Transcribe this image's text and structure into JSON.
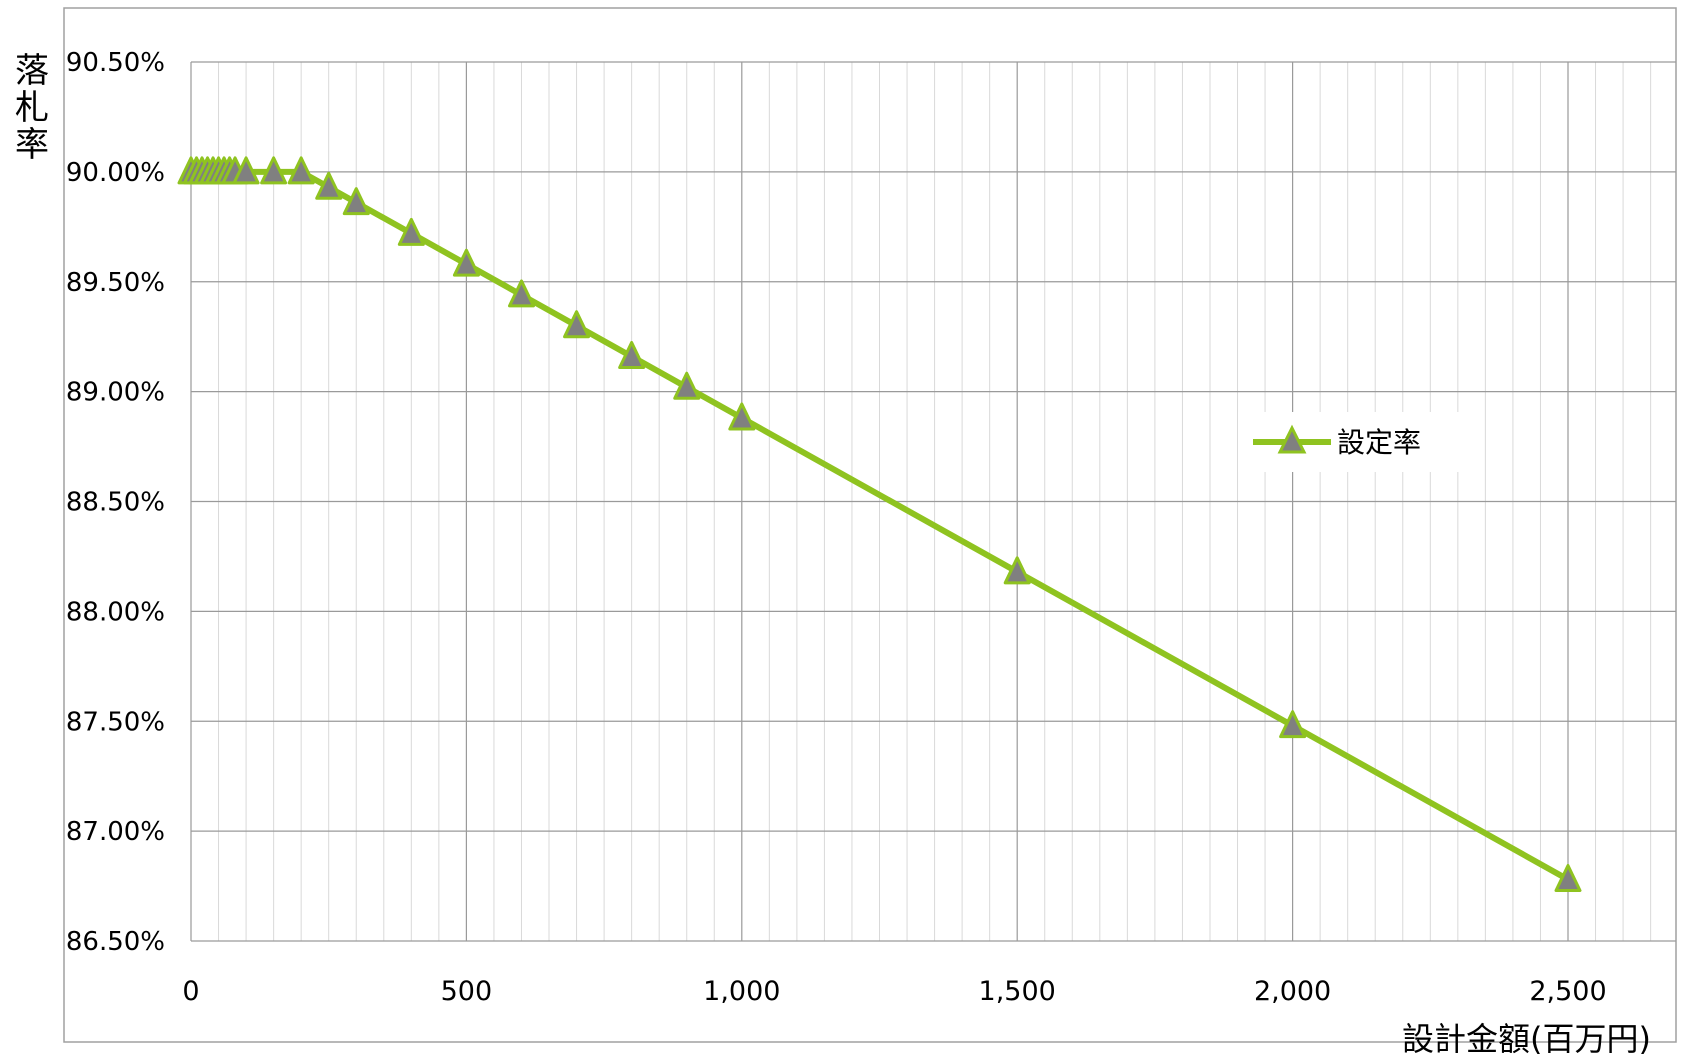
{
  "chart_data": {
    "type": "line",
    "title": "",
    "xlabel": "設計金額(百万円)",
    "ylabel": "落札率",
    "xlim": [
      0,
      2700
    ],
    "ylim": [
      86.5,
      90.5
    ],
    "x_major_ticks": [
      0,
      500,
      1000,
      1500,
      2000,
      2500
    ],
    "x_tick_labels": [
      "0",
      "500",
      "1,000",
      "1,500",
      "2,000",
      "2,500"
    ],
    "y_ticks": [
      86.5,
      87.0,
      87.5,
      88.0,
      88.5,
      89.0,
      89.5,
      90.0,
      90.5
    ],
    "y_tick_labels": [
      "86.50%",
      "87.00%",
      "87.50%",
      "88.00%",
      "88.50%",
      "89.00%",
      "89.50%",
      "90.00%",
      "90.50%"
    ],
    "grid": "on",
    "legend_position": "right",
    "series": [
      {
        "name": "設定率",
        "color": "#8fc320",
        "marker": "triangle",
        "marker_fill": "#808080",
        "points": [
          [
            0,
            90.0
          ],
          [
            10,
            90.0
          ],
          [
            20,
            90.0
          ],
          [
            30,
            90.0
          ],
          [
            40,
            90.0
          ],
          [
            50,
            90.0
          ],
          [
            60,
            90.0
          ],
          [
            70,
            90.0
          ],
          [
            80,
            90.0
          ],
          [
            100,
            90.0
          ],
          [
            150,
            90.0
          ],
          [
            200,
            90.0
          ],
          [
            250,
            89.93
          ],
          [
            300,
            89.86
          ],
          [
            400,
            89.72
          ],
          [
            500,
            89.58
          ],
          [
            600,
            89.44
          ],
          [
            700,
            89.3
          ],
          [
            800,
            89.16
          ],
          [
            900,
            89.02
          ],
          [
            1000,
            88.88
          ],
          [
            1500,
            88.18
          ],
          [
            2000,
            87.48
          ],
          [
            2500,
            86.78
          ]
        ]
      }
    ]
  }
}
